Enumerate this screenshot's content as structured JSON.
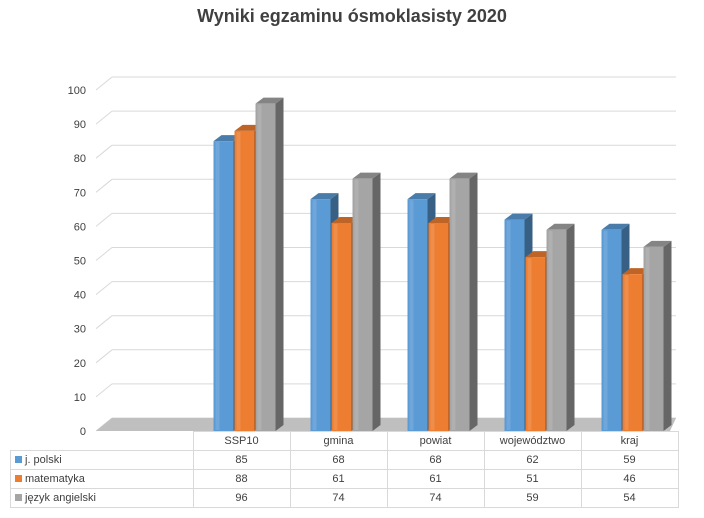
{
  "chart_data": {
    "type": "bar",
    "title": "Wyniki egzaminu ósmoklasisty 2020",
    "categories": [
      "SSP10",
      "gmina",
      "powiat",
      "województwo",
      "kraj"
    ],
    "series": [
      {
        "name": "j. polski",
        "values": [
          85,
          68,
          68,
          62,
          59
        ],
        "color": "#5b9bd5"
      },
      {
        "name": "matematyka",
        "values": [
          88,
          61,
          61,
          51,
          46
        ],
        "color": "#ed7d31"
      },
      {
        "name": "język angielski",
        "values": [
          96,
          74,
          74,
          59,
          54
        ],
        "color": "#a5a5a5"
      }
    ],
    "ylim": [
      0,
      100
    ],
    "yticks": [
      0,
      10,
      20,
      30,
      40,
      50,
      60,
      70,
      80,
      90,
      100
    ],
    "grid": true,
    "legend": "data-table",
    "style": "3d-clustered-column"
  }
}
